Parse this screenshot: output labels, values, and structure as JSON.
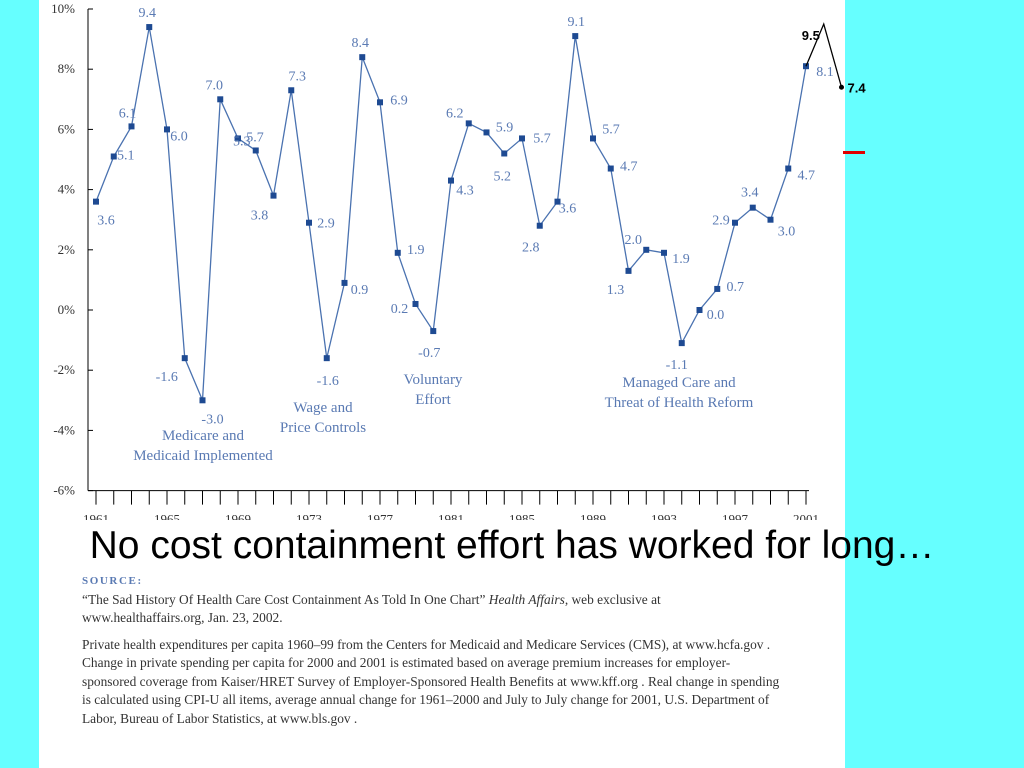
{
  "slide": {
    "headline": "No cost containment effort has worked for long…",
    "source_heading": "SOURCE:",
    "source_citation_1": "“The Sad History Of Health Care Cost Containment As Told In One Chart” ",
    "source_citation_journal": "Health Affairs",
    "source_citation_2": ", web exclusive at www.healthaffairs.org, Jan. 23, 2002.",
    "source_notes": "Private health expenditures per capita 1960–99 from the Centers for Medicaid and Medicare Services (CMS), at www.hcfa.gov . Change in private spending per capita for 2000 and 2001 is estimated based on average premium increases for employer-sponsored coverage from Kaiser/HRET Survey of Employer-Sponsored Health Benefits at www.kff.org . Real change in spending is calculated using CPI-U all items, average annual change for 1961–2000 and July to July change for 2001, U.S. Department of Labor, Bureau of Labor Statistics, at www.bls.gov .",
    "colors": {
      "background": "#66ffff",
      "panel": "#ffffff",
      "series": "#4a72b0",
      "label": "#5a7ab3",
      "overlay": "#000000",
      "red_mark": "#e00000"
    }
  },
  "chart_data": {
    "type": "line",
    "title": "",
    "xlabel": "",
    "ylabel": "",
    "ylim": [
      -6,
      10
    ],
    "xlim": [
      1961,
      2001
    ],
    "y_ticks": [
      -6,
      -4,
      -2,
      0,
      2,
      4,
      6,
      8,
      10
    ],
    "y_tick_labels": [
      "-6%",
      "-4%",
      "-2%",
      "0%",
      "2%",
      "4%",
      "6%",
      "8%",
      "10%"
    ],
    "x_tick_labels": [
      "1961",
      "1965",
      "1969",
      "1973",
      "1977",
      "1981",
      "1985",
      "1989",
      "1993",
      "1997",
      "2001"
    ],
    "grid": false,
    "series": [
      {
        "x": [
          1961,
          1962,
          1963,
          1964,
          1965,
          1966,
          1967,
          1968,
          1969,
          1970,
          1971,
          1972,
          1973,
          1974,
          1975,
          1976,
          1977,
          1978,
          1979,
          1980,
          1981,
          1982,
          1983,
          1984,
          1985,
          1986,
          1987,
          1988,
          1989,
          1990,
          1991,
          1992,
          1993,
          1994,
          1995,
          1996,
          1997,
          1998,
          1999,
          2000,
          2001
        ],
        "values": [
          3.6,
          5.1,
          6.1,
          9.4,
          6.0,
          -1.6,
          -3.0,
          7.0,
          5.7,
          5.3,
          3.8,
          7.3,
          2.9,
          -1.6,
          0.9,
          8.4,
          6.9,
          1.9,
          0.2,
          -0.7,
          4.3,
          6.2,
          5.9,
          5.2,
          5.7,
          2.8,
          3.6,
          9.1,
          5.7,
          4.7,
          1.3,
          2.0,
          1.9,
          -1.1,
          0.0,
          0.7,
          2.9,
          3.4,
          3.0,
          4.7,
          8.1
        ],
        "labels": [
          "3.6",
          "5.1",
          "6.1",
          "9.4",
          "6.0",
          "-1.6",
          "-3.0",
          "7.0",
          "5.7",
          "5.3",
          "3.8",
          "7.3",
          "2.9",
          "-1.6",
          "0.9",
          "8.4",
          "6.9",
          "1.9",
          "0.2",
          "-0.7",
          "4.3",
          "6.2",
          "5.9",
          "5.2",
          "5.7",
          "2.8",
          "3.6",
          "9.1",
          "5.7",
          "4.7",
          "1.3",
          "2.0",
          "1.9",
          "-1.1",
          "0.0",
          "0.7",
          "2.9",
          "3.4",
          "3.0",
          "4.7",
          "8.1"
        ]
      },
      {
        "x": [
          2001,
          2002,
          2003
        ],
        "values": [
          8.1,
          9.5,
          7.4
        ],
        "labels": [
          "",
          "9.5",
          "7.4"
        ]
      }
    ],
    "annotations": [
      {
        "id": "medicare",
        "lines": [
          "Medicare and",
          "Medicaid Implemented"
        ]
      },
      {
        "id": "wage",
        "lines": [
          "Wage and",
          "Price Controls"
        ]
      },
      {
        "id": "voluntary",
        "lines": [
          "Voluntary",
          "Effort"
        ]
      },
      {
        "id": "managed",
        "lines": [
          "Managed Care and",
          "Threat of Health Reform"
        ]
      }
    ]
  }
}
